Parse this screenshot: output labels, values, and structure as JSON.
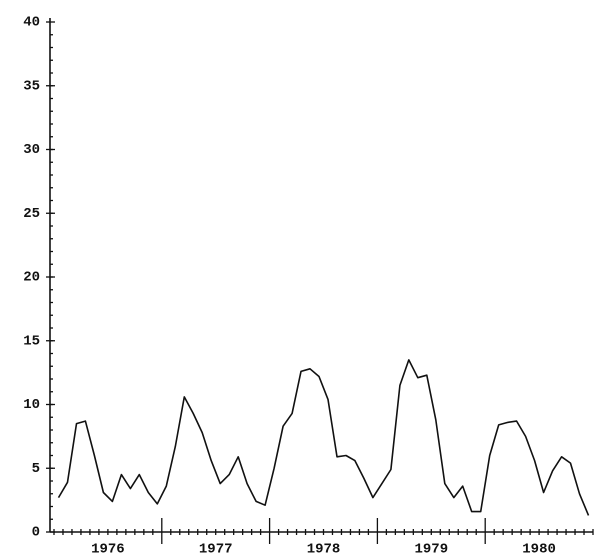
{
  "chart_data": {
    "type": "line",
    "year_labels": [
      "1976",
      "1977",
      "1978",
      "1979",
      "1980"
    ],
    "values": [
      2.7,
      3.9,
      8.5,
      8.7,
      6.0,
      3.1,
      2.4,
      4.5,
      3.4,
      4.5,
      3.1,
      2.2,
      3.6,
      6.7,
      10.6,
      9.3,
      7.8,
      5.6,
      3.8,
      4.5,
      5.9,
      3.8,
      2.4,
      2.1,
      5.0,
      8.3,
      9.3,
      12.6,
      12.8,
      12.2,
      10.4,
      5.9,
      6.0,
      5.6,
      4.2,
      2.7,
      3.8,
      4.9,
      11.5,
      13.5,
      12.1,
      12.3,
      8.8,
      3.8,
      2.7,
      3.6,
      1.6,
      1.6,
      6.0,
      8.4,
      8.6,
      8.7,
      7.5,
      5.6,
      3.1,
      4.8,
      5.9,
      5.4,
      3.0,
      1.3
    ],
    "color": "#111111",
    "ylim": [
      0,
      40
    ],
    "yticks": [
      0,
      5,
      10,
      15,
      20,
      25,
      30,
      35,
      40
    ]
  }
}
